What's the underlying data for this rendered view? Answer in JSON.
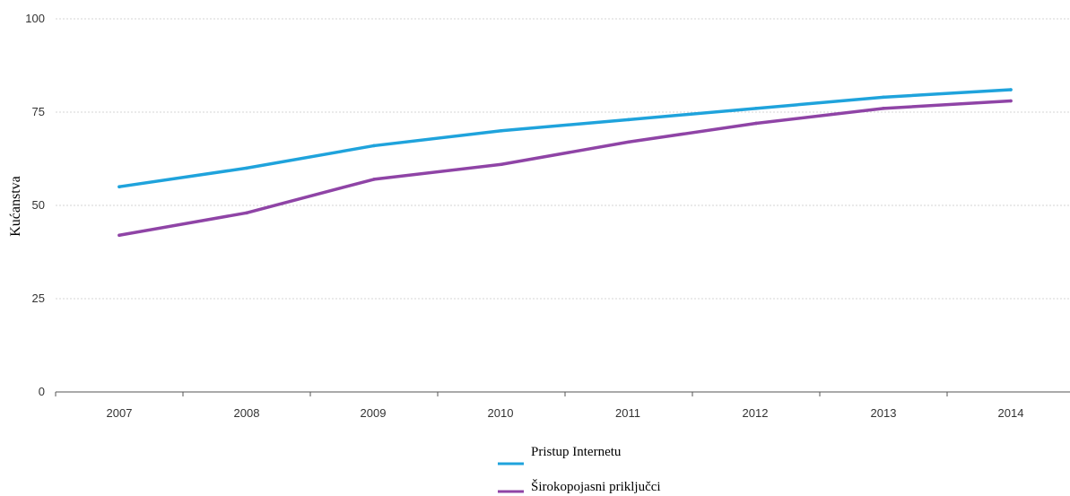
{
  "chart_data": {
    "type": "line",
    "title": "",
    "xlabel": "",
    "ylabel": "Kućanstva",
    "categories": [
      "2007",
      "2008",
      "2009",
      "2010",
      "2011",
      "2012",
      "2013",
      "2014"
    ],
    "yticks": [
      "0",
      "25",
      "50",
      "75",
      "100"
    ],
    "ylim": [
      0,
      100
    ],
    "grid": true,
    "legend_position": "bottom-center",
    "series": [
      {
        "name": "Pristup Internetu",
        "color": "#1fa3dc",
        "values": [
          55,
          60,
          66,
          70,
          73,
          76,
          79,
          81
        ]
      },
      {
        "name": "Širokopojasni priključci",
        "color": "#8f44a6",
        "values": [
          42,
          48,
          57,
          61,
          67,
          72,
          76,
          78
        ]
      }
    ]
  }
}
